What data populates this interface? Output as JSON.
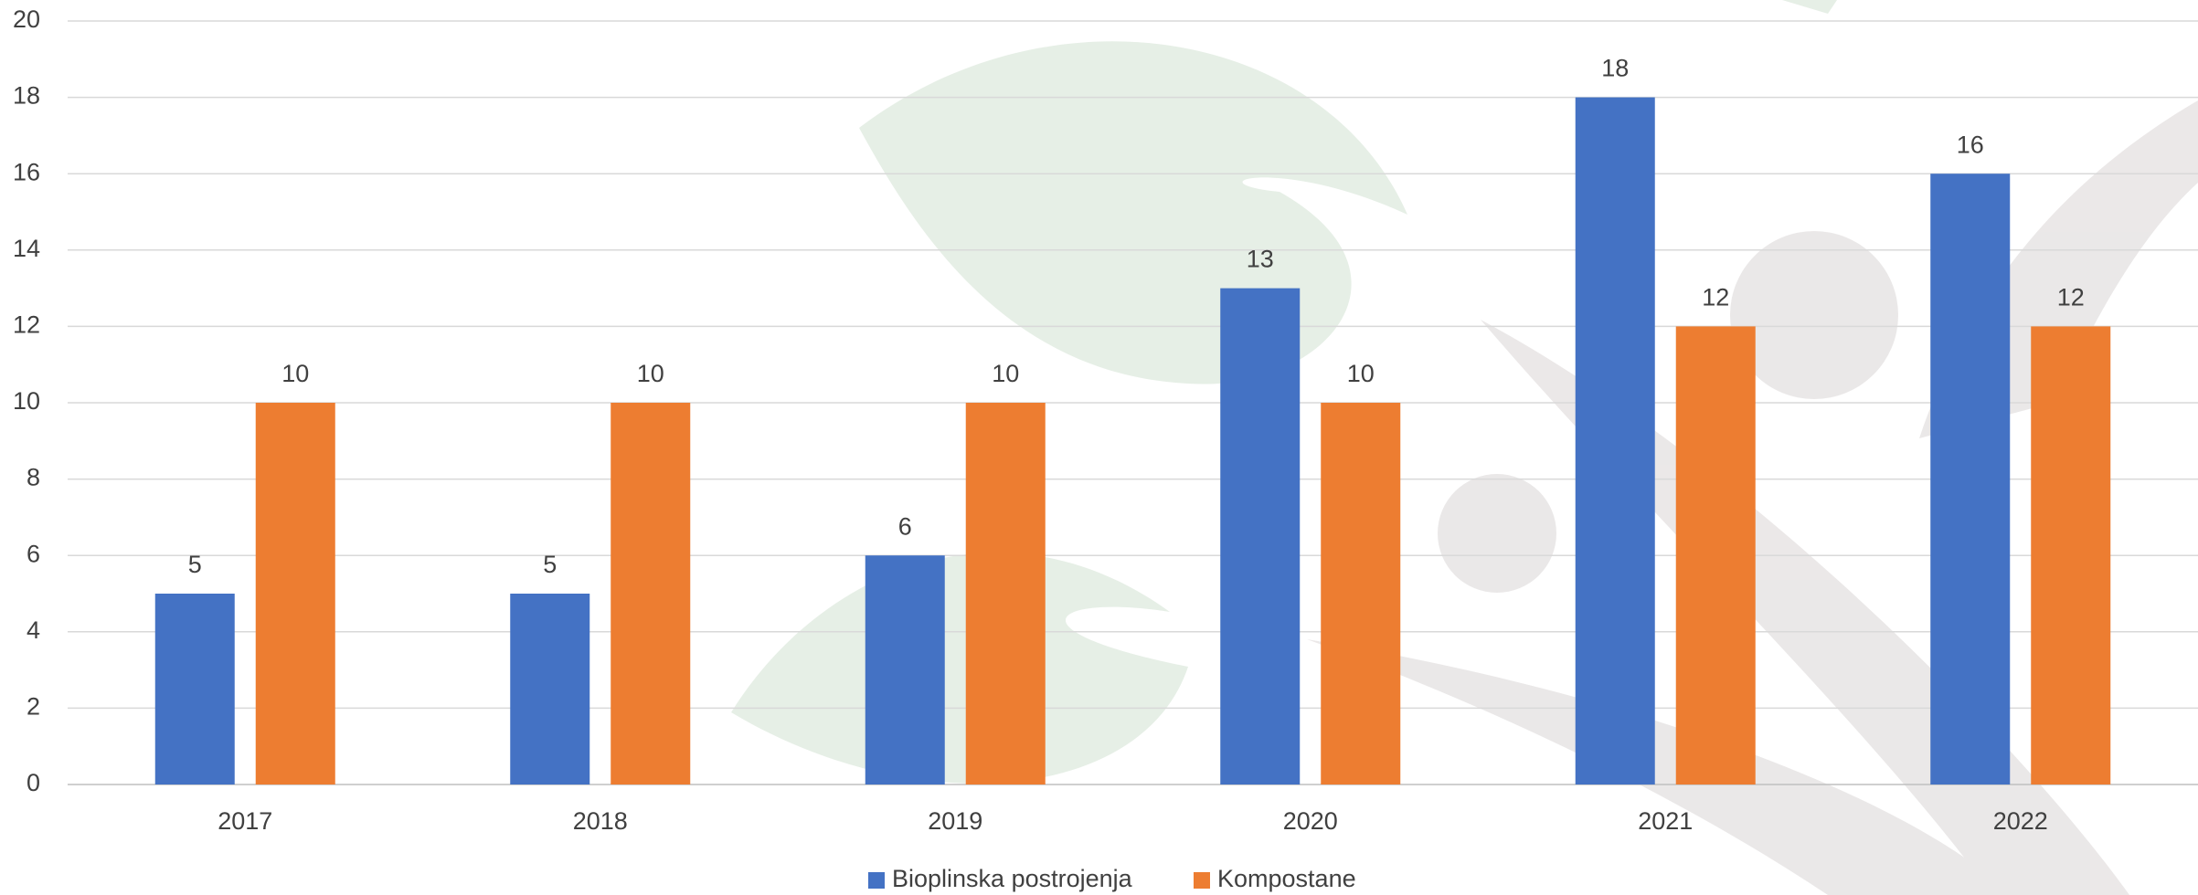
{
  "chart_data": {
    "type": "bar",
    "categories": [
      "2017",
      "2018",
      "2019",
      "2020",
      "2021",
      "2022"
    ],
    "series": [
      {
        "name": "Bioplinska postrojenja",
        "color": "#4472c4",
        "values": [
          5,
          5,
          6,
          13,
          18,
          16
        ]
      },
      {
        "name": "Kompostane",
        "color": "#ed7d31",
        "values": [
          10,
          10,
          10,
          10,
          12,
          12
        ]
      }
    ],
    "ylim": [
      0,
      20
    ],
    "yticks": [
      0,
      2,
      4,
      6,
      8,
      10,
      12,
      14,
      16,
      18,
      20
    ],
    "grid": true,
    "legend": "bottom"
  }
}
